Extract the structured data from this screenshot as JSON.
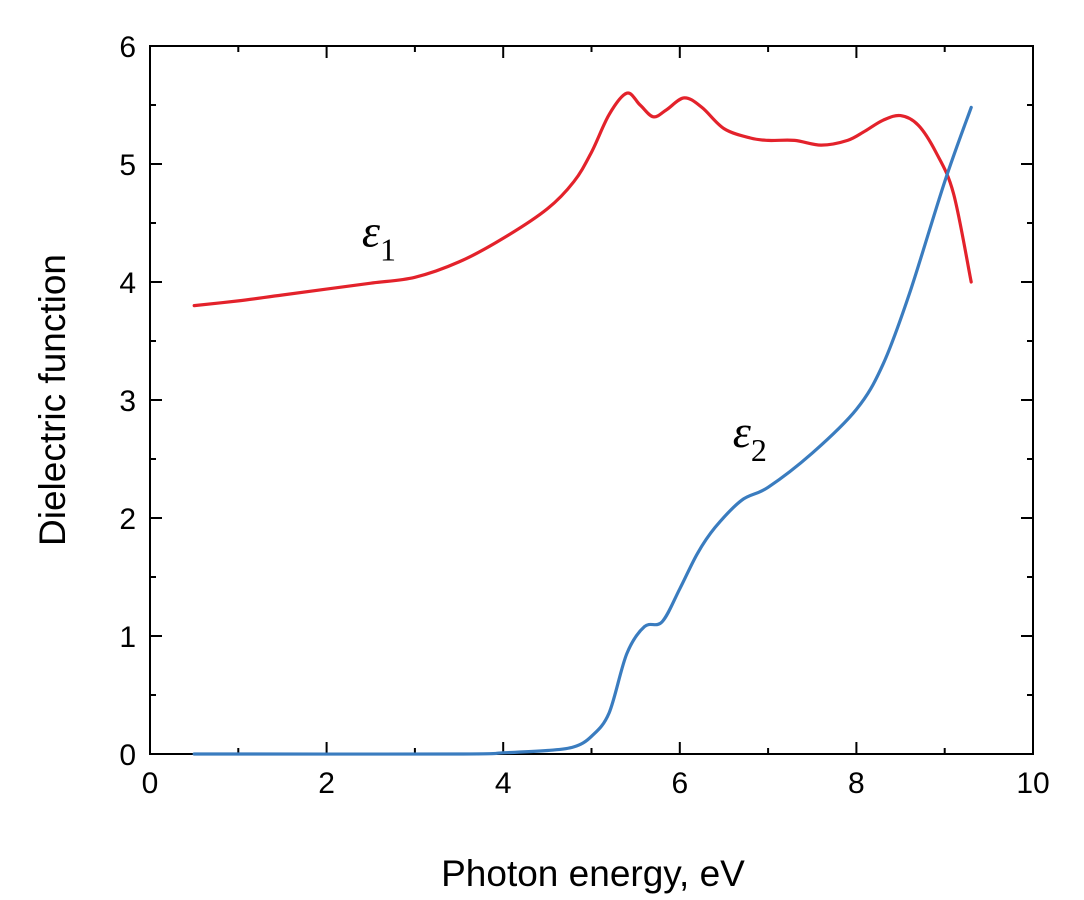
{
  "chart_data": {
    "type": "line",
    "title": "",
    "xlabel": "Photon energy, eV",
    "ylabel": "Dielectric function",
    "xlim": [
      0,
      10
    ],
    "ylim": [
      0,
      6
    ],
    "xticks": [
      0,
      2,
      4,
      6,
      8,
      10
    ],
    "yticks": [
      0,
      1,
      2,
      3,
      4,
      5,
      6
    ],
    "grid": false,
    "series": [
      {
        "name": "ε1",
        "symbol": "ε",
        "subscript": "1",
        "color": "#e3222b",
        "points": [
          [
            0.5,
            3.8
          ],
          [
            1.0,
            3.84
          ],
          [
            1.5,
            3.89
          ],
          [
            2.0,
            3.94
          ],
          [
            2.5,
            3.99
          ],
          [
            3.0,
            4.04
          ],
          [
            3.5,
            4.17
          ],
          [
            4.0,
            4.37
          ],
          [
            4.5,
            4.62
          ],
          [
            4.8,
            4.85
          ],
          [
            5.0,
            5.1
          ],
          [
            5.2,
            5.42
          ],
          [
            5.4,
            5.6
          ],
          [
            5.55,
            5.5
          ],
          [
            5.7,
            5.4
          ],
          [
            5.85,
            5.46
          ],
          [
            6.05,
            5.56
          ],
          [
            6.25,
            5.48
          ],
          [
            6.5,
            5.3
          ],
          [
            6.8,
            5.22
          ],
          [
            7.0,
            5.2
          ],
          [
            7.3,
            5.2
          ],
          [
            7.6,
            5.16
          ],
          [
            7.9,
            5.2
          ],
          [
            8.1,
            5.28
          ],
          [
            8.3,
            5.37
          ],
          [
            8.5,
            5.41
          ],
          [
            8.7,
            5.33
          ],
          [
            8.9,
            5.1
          ],
          [
            9.1,
            4.75
          ],
          [
            9.3,
            4.0
          ]
        ]
      },
      {
        "name": "ε2",
        "symbol": "ε",
        "subscript": "2",
        "color": "#3a7cbf",
        "points": [
          [
            0.5,
            0.0
          ],
          [
            3.5,
            0.0
          ],
          [
            4.0,
            0.01
          ],
          [
            4.5,
            0.03
          ],
          [
            4.8,
            0.06
          ],
          [
            5.0,
            0.15
          ],
          [
            5.2,
            0.35
          ],
          [
            5.4,
            0.85
          ],
          [
            5.6,
            1.08
          ],
          [
            5.8,
            1.12
          ],
          [
            6.0,
            1.4
          ],
          [
            6.2,
            1.7
          ],
          [
            6.4,
            1.92
          ],
          [
            6.7,
            2.15
          ],
          [
            7.0,
            2.26
          ],
          [
            7.5,
            2.55
          ],
          [
            8.0,
            2.92
          ],
          [
            8.3,
            3.3
          ],
          [
            8.6,
            3.9
          ],
          [
            9.0,
            4.85
          ],
          [
            9.3,
            5.48
          ]
        ]
      }
    ],
    "annotations": [
      {
        "series": "ε1",
        "x": 2.4,
        "y": 4.3
      },
      {
        "series": "ε2",
        "x": 6.6,
        "y": 2.6
      }
    ]
  }
}
